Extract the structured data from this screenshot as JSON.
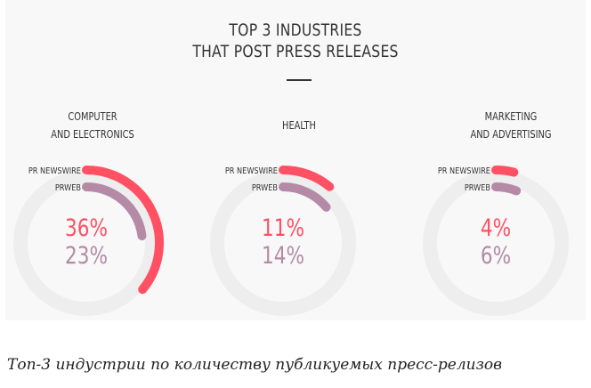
{
  "title_lines": [
    "TOP 3 INDUSTRIES",
    "THAT POST PRESS RELEASES"
  ],
  "caption": "Топ-3 индустрии по количеству публикуемых пресс-релизов",
  "colors": {
    "pr_newswire": "#ff5064",
    "prweb": "#b48aa6",
    "track": "#eeeeee",
    "text": "#333333"
  },
  "chart_data": {
    "type": "radial-bar",
    "title": "TOP 3 INDUSTRIES THAT POST PRESS RELEASES",
    "value_unit": "%",
    "series_names": [
      "PR NEWSWIRE",
      "PRWEB"
    ],
    "industries": [
      {
        "name_lines": [
          "COMPUTER",
          "AND ELECTRONICS"
        ],
        "values": [
          36,
          23
        ],
        "labels": [
          "36%",
          "23%"
        ]
      },
      {
        "name_lines": [
          "HEALTH"
        ],
        "values": [
          11,
          14
        ],
        "labels": [
          "11%",
          "14%"
        ]
      },
      {
        "name_lines": [
          "MARKETING",
          "AND ADVERTISING"
        ],
        "values": [
          4,
          6
        ],
        "labels": [
          "4%",
          "6%"
        ]
      }
    ]
  }
}
